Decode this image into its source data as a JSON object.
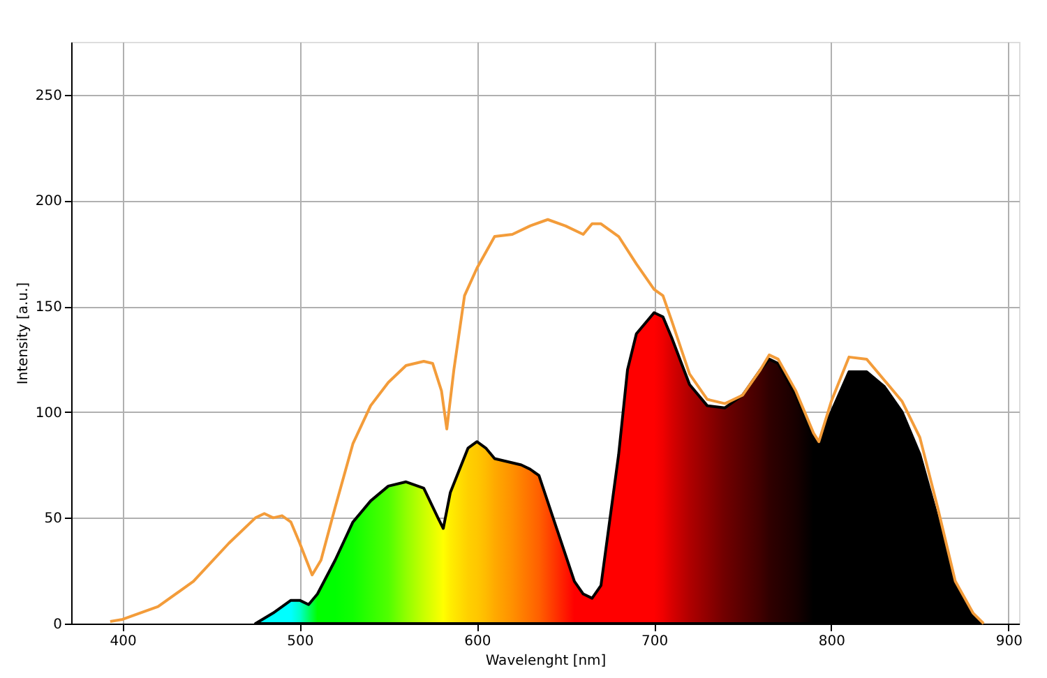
{
  "chart_data": {
    "type": "line",
    "xlabel": "Wavelenght [nm]",
    "ylabel": "Intensity [a.u.]",
    "xlim": [
      371,
      906
    ],
    "ylim": [
      0,
      275
    ],
    "xticks": [
      400,
      500,
      600,
      700,
      800,
      900
    ],
    "yticks": [
      0,
      50,
      100,
      150,
      200,
      250
    ],
    "grid": true,
    "series": [
      {
        "type": "area",
        "color": "#000000",
        "x": [
          475,
          485,
          495,
          500,
          505,
          510,
          520,
          530,
          540,
          550,
          560,
          570,
          578,
          581,
          585,
          595,
          600,
          605,
          610,
          620,
          625,
          630,
          635,
          645,
          655,
          660,
          665,
          670,
          680,
          685,
          690,
          700,
          705,
          710,
          720,
          730,
          740,
          750,
          760,
          765,
          770,
          780,
          790,
          793,
          800,
          810,
          820,
          830,
          840,
          850,
          860,
          870,
          880,
          885
        ],
        "values": [
          0,
          5,
          11,
          11,
          9,
          14,
          30,
          48,
          58,
          65,
          67,
          64,
          50,
          45,
          62,
          83,
          86,
          83,
          78,
          76,
          75,
          73,
          70,
          45,
          20,
          14,
          12,
          18,
          80,
          120,
          137,
          147,
          145,
          135,
          113,
          103,
          102,
          108,
          120,
          125,
          123,
          108,
          88,
          86,
          100,
          119,
          119,
          112,
          100,
          80,
          50,
          18,
          4,
          0
        ],
        "colors": [
          "#00ffff",
          "#00ffff",
          "#00ffff",
          "#00ffcc",
          "#00ff66",
          "#00ff00",
          "#00ff00",
          "#10ff00",
          "#30ff00",
          "#50ff00",
          "#90ff00",
          "#c8ff00",
          "#f0ff00",
          "#ffff00",
          "#ffee00",
          "#ffd000",
          "#ffc800",
          "#ffbb00",
          "#ffaa00",
          "#ff9000",
          "#ff8000",
          "#ff7000",
          "#ff6000",
          "#ff3000",
          "#ff0000",
          "#ff0000",
          "#ff0000",
          "#ff0000",
          "#ff0000",
          "#ff0000",
          "#ff0000",
          "#ff0000",
          "#f00000",
          "#d80000",
          "#b00000",
          "#900000",
          "#700000",
          "#580000",
          "#400000",
          "#300000",
          "#280000",
          "#180000",
          "#000000",
          "#000000",
          "#000000",
          "#000000",
          "#000000",
          "#000000",
          "#000000",
          "#000000",
          "#000000",
          "#000000",
          "#000000",
          "#000000"
        ]
      },
      {
        "color": "#f39c3a",
        "x": [
          393,
          400,
          420,
          440,
          460,
          475,
          480,
          485,
          490,
          495,
          500,
          507,
          512,
          520,
          530,
          540,
          550,
          560,
          570,
          575,
          580,
          583,
          587,
          593,
          600,
          610,
          620,
          630,
          640,
          650,
          660,
          665,
          670,
          680,
          690,
          700,
          705,
          710,
          720,
          730,
          740,
          750,
          760,
          765,
          770,
          780,
          790,
          793,
          800,
          810,
          820,
          830,
          840,
          850,
          860,
          870,
          880,
          886
        ],
        "values": [
          1,
          2,
          8,
          20,
          38,
          50,
          52,
          50,
          51,
          48,
          38,
          23,
          30,
          55,
          85,
          103,
          114,
          122,
          124,
          123,
          110,
          92,
          120,
          155,
          168,
          183,
          184,
          188,
          191,
          188,
          184,
          189,
          189,
          183,
          170,
          158,
          155,
          143,
          118,
          106,
          104,
          108,
          120,
          127,
          125,
          110,
          90,
          86,
          105,
          126,
          125,
          115,
          105,
          88,
          55,
          20,
          5,
          0
        ]
      }
    ]
  }
}
